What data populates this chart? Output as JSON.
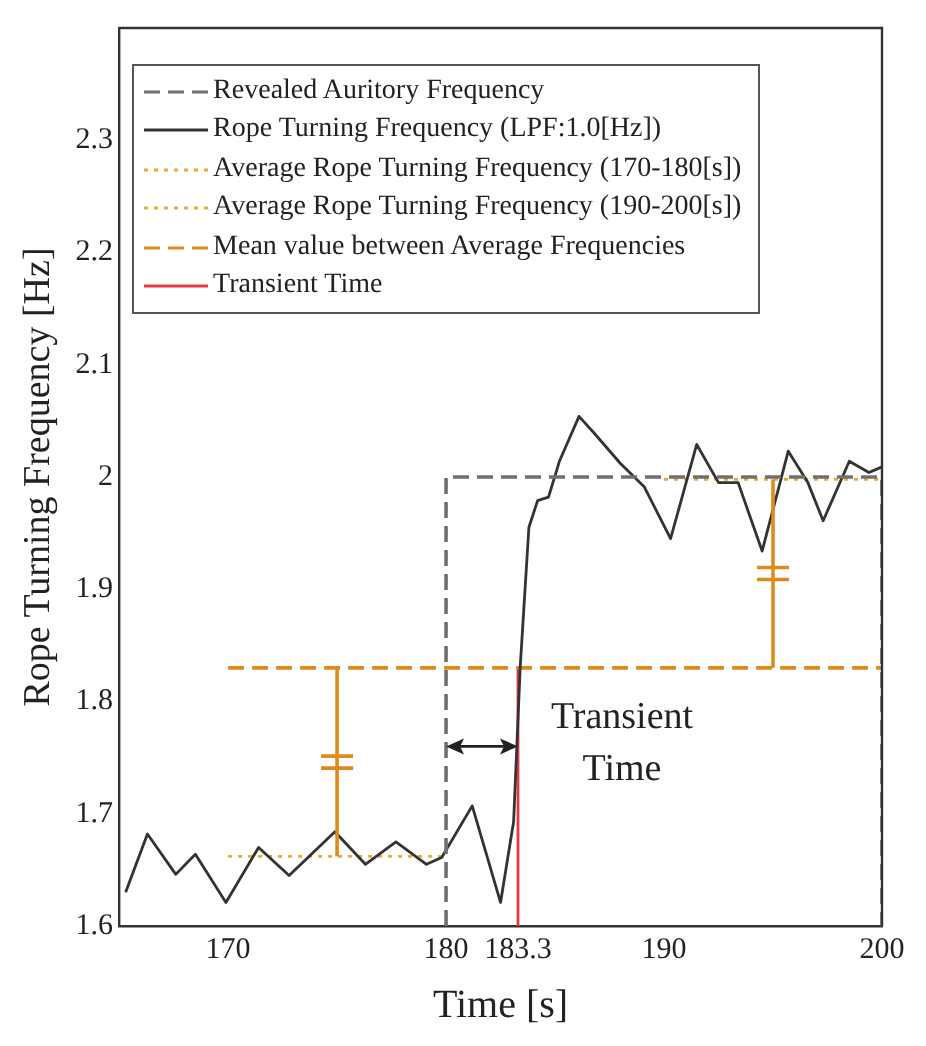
{
  "chart_data": {
    "type": "line",
    "xlabel": "Time [s]",
    "ylabel": "Rope Turning Frequency [Hz]",
    "xlim": [
      165,
      200
    ],
    "ylim": [
      1.6,
      2.4
    ],
    "xticks": [
      170,
      180,
      183.3,
      190,
      200
    ],
    "yticks": [
      1.6,
      1.7,
      1.8,
      1.9,
      2.0,
      2.1,
      2.2,
      2.3
    ],
    "grid": false,
    "legend": "top",
    "marker": "none",
    "annotations": [
      {
        "text": "Transient Time",
        "x": 183.3,
        "y": 1.76
      }
    ],
    "series": [
      {
        "name": "Revealed Auritory Frequency",
        "color": "#707070",
        "line_style": "dashed",
        "x": [
          180,
          180,
          200,
          200
        ],
        "values": [
          1.6,
          2.0,
          2.0,
          1.6
        ]
      },
      {
        "name": "Rope Turning Frequency (LPF:1.0[Hz])",
        "color": "#333333",
        "line_style": "solid",
        "x": [
          165.3,
          166.3,
          167.6,
          168.5,
          169.9,
          171.4,
          172.8,
          174.9,
          176.3,
          177.7,
          179.1,
          179.8,
          181.2,
          182.5,
          183.1,
          183.4,
          183.8,
          184.2,
          184.7,
          185.2,
          186.1,
          186.8,
          188.0,
          189.1,
          190.3,
          191.5,
          192.5,
          193.4,
          194.5,
          195.7,
          196.6,
          197.3,
          198.5,
          199.4,
          200.0
        ],
        "values": [
          1.63,
          1.682,
          1.646,
          1.664,
          1.621,
          1.67,
          1.645,
          1.684,
          1.655,
          1.675,
          1.655,
          1.661,
          1.707,
          1.621,
          1.693,
          1.83,
          1.955,
          1.979,
          1.982,
          2.014,
          2.054,
          2.039,
          2.012,
          1.991,
          1.945,
          2.029,
          1.995,
          1.995,
          1.934,
          2.023,
          1.995,
          1.961,
          2.014,
          2.004,
          2.009
        ]
      },
      {
        "name": "Average Rope Turning Frequency (170-180[s])",
        "color": "#f0a830",
        "line_style": "dotted",
        "x": [
          170,
          180
        ],
        "values": [
          1.662,
          1.662
        ]
      },
      {
        "name": "Average Rope Turning Frequency (190-200[s])",
        "color": "#f0a830",
        "line_style": "dotted",
        "x": [
          190,
          200
        ],
        "values": [
          1.998,
          1.998
        ]
      },
      {
        "name": "Mean value between Average Frequencies",
        "color": "#e08a1e",
        "line_style": "dashed",
        "x": [
          170,
          200
        ],
        "values": [
          1.83,
          1.83
        ]
      },
      {
        "name": "Transient Time",
        "color": "#e8383c",
        "line_style": "solid",
        "x": [
          183.3,
          183.3
        ],
        "values": [
          1.6,
          1.83
        ]
      }
    ]
  }
}
